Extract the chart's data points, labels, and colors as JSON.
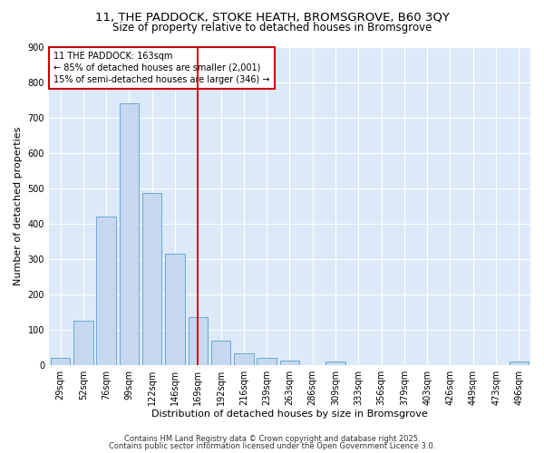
{
  "title1": "11, THE PADDOCK, STOKE HEATH, BROMSGROVE, B60 3QY",
  "title2": "Size of property relative to detached houses in Bromsgrove",
  "xlabel": "Distribution of detached houses by size in Bromsgrove",
  "ylabel": "Number of detached properties",
  "categories": [
    "29sqm",
    "52sqm",
    "76sqm",
    "99sqm",
    "122sqm",
    "146sqm",
    "169sqm",
    "192sqm",
    "216sqm",
    "239sqm",
    "263sqm",
    "286sqm",
    "309sqm",
    "333sqm",
    "356sqm",
    "379sqm",
    "403sqm",
    "426sqm",
    "449sqm",
    "473sqm",
    "496sqm"
  ],
  "values": [
    20,
    125,
    420,
    740,
    485,
    315,
    135,
    68,
    32,
    20,
    12,
    0,
    10,
    0,
    0,
    0,
    0,
    0,
    0,
    0,
    10
  ],
  "bar_color": "#c5d8ef",
  "bar_edgecolor": "#6aaad4",
  "red_line_x": 6.0,
  "annotation_line1": "11 THE PADDOCK: 163sqm",
  "annotation_line2": "← 85% of detached houses are smaller (2,001)",
  "annotation_line3": "15% of semi-detached houses are larger (346) →",
  "annotation_box_color": "#ffffff",
  "annotation_box_edgecolor": "#cc0000",
  "red_line_color": "#cc0000",
  "ylim": [
    0,
    900
  ],
  "yticks": [
    0,
    100,
    200,
    300,
    400,
    500,
    600,
    700,
    800,
    900
  ],
  "footer1": "Contains HM Land Registry data © Crown copyright and database right 2025.",
  "footer2": "Contains public sector information licensed under the Open Government Licence 3.0.",
  "background_color": "#ffffff",
  "plot_bg_color": "#dce9f8",
  "grid_color": "#ffffff",
  "title1_fontsize": 9.5,
  "title2_fontsize": 8.5,
  "axis_label_fontsize": 8,
  "tick_fontsize": 7,
  "footer_fontsize": 6,
  "annot_fontsize": 7
}
